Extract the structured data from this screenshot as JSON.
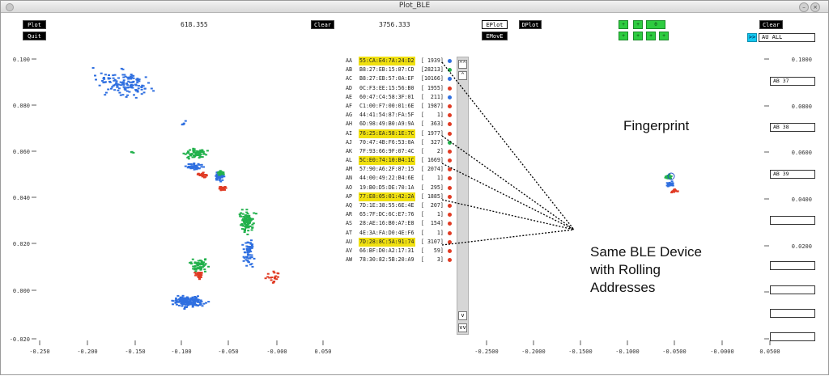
{
  "window": {
    "title": "Plot_BLE"
  },
  "toolbar": {
    "plot_label": "Plot",
    "quit_label": "Quit",
    "readout_x": "618.355",
    "clear_label": "Clear",
    "readout_y": "3756.333",
    "eplot_label": "EPlot",
    "emove_label": "EMovE",
    "dplot_label": "DPlot",
    "clear_right_label": "Clear",
    "nav_center_label": "0",
    "filter_value": "AU ALL",
    "filter_arrow": ">>"
  },
  "left_plot": {
    "y_ticks": [
      "0.100",
      "0.080",
      "0.060",
      "0.040",
      "0.020",
      "0.000",
      "-0.020"
    ],
    "x_ticks": [
      "-0.250",
      "-0.200",
      "-0.150",
      "-0.100",
      "-0.050",
      "-0.000",
      "0.050"
    ]
  },
  "right_plot": {
    "y_ticks": [
      "0.1000",
      "0.0800",
      "0.0600",
      "0.0400",
      "0.0200",
      "0.0000",
      "-0.0200"
    ],
    "x_ticks": [
      "-0.2500",
      "-0.2000",
      "-0.1500",
      "-0.1000",
      "-0.0500",
      "-0.0000",
      "0.0500"
    ]
  },
  "devices": [
    {
      "code": "AA",
      "addr": "55:CA:E4:7A:24:D2",
      "count": "[ 1939]",
      "highlight": true,
      "color": "#2f6fe0"
    },
    {
      "code": "AB",
      "addr": "B8:27:EB:15:87:CD",
      "count": "[28213]",
      "highlight": false,
      "color": "#22b14c"
    },
    {
      "code": "AC",
      "addr": "B8:27:EB:57:0A:EF",
      "count": "[10166]",
      "highlight": false,
      "color": "#2f6fe0"
    },
    {
      "code": "AD",
      "addr": "0C:F3:EE:15:56:B0",
      "count": "[ 1955]",
      "highlight": false,
      "color": "#e03b24"
    },
    {
      "code": "AE",
      "addr": "60:47:C4:58:3F:01",
      "count": "[  211]",
      "highlight": false,
      "color": "#2f6fe0"
    },
    {
      "code": "AF",
      "addr": "C1:00:F7:00:01:6E",
      "count": "[ 1987]",
      "highlight": false,
      "color": "#e03b24"
    },
    {
      "code": "AG",
      "addr": "44:41:54:87:FA:5F",
      "count": "[    1]",
      "highlight": false,
      "color": "#e03b24"
    },
    {
      "code": "AH",
      "addr": "6D:98:49:B0:A9:9A",
      "count": "[  363]",
      "highlight": false,
      "color": "#e03b24"
    },
    {
      "code": "AI",
      "addr": "76:25:EA:58:1E:7C",
      "count": "[ 1977]",
      "highlight": true,
      "color": "#e03b24"
    },
    {
      "code": "AJ",
      "addr": "70:47:4B:F6:53:0A",
      "count": "[  327]",
      "highlight": false,
      "color": "#22b14c"
    },
    {
      "code": "AK",
      "addr": "7F:93:66:9F:07:4C",
      "count": "[    2]",
      "highlight": false,
      "color": "#e03b24"
    },
    {
      "code": "AL",
      "addr": "5C:E0:74:10:B4:1C",
      "count": "[ 1669]",
      "highlight": true,
      "color": "#e03b24"
    },
    {
      "code": "AM",
      "addr": "57:90:A6:2F:87:15",
      "count": "[ 2074]",
      "highlight": false,
      "color": "#e03b24"
    },
    {
      "code": "AN",
      "addr": "44:00:49:22:B4:6E",
      "count": "[    1]",
      "highlight": false,
      "color": "#e03b24"
    },
    {
      "code": "AO",
      "addr": "19:B0:D5:DE:70:1A",
      "count": "[  295]",
      "highlight": false,
      "color": "#e03b24"
    },
    {
      "code": "AP",
      "addr": "77:E8:05:01:42:2A",
      "count": "[ 1885]",
      "highlight": true,
      "color": "#e03b24"
    },
    {
      "code": "AQ",
      "addr": "7D:1E:38:55:6E:4E",
      "count": "[  207]",
      "highlight": false,
      "color": "#e03b24"
    },
    {
      "code": "AR",
      "addr": "65:7F:DC:6C:E7:76",
      "count": "[    1]",
      "highlight": false,
      "color": "#e03b24"
    },
    {
      "code": "AS",
      "addr": "28:AE:16:B0:A7:E8",
      "count": "[  154]",
      "highlight": false,
      "color": "#e03b24"
    },
    {
      "code": "AT",
      "addr": "4E:3A:FA:D0:4E:F6",
      "count": "[    1]",
      "highlight": false,
      "color": "#e03b24"
    },
    {
      "code": "AU",
      "addr": "7D:28:8C:5A:91:74",
      "count": "[ 3107]",
      "highlight": true,
      "color": "#e03b24"
    },
    {
      "code": "AV",
      "addr": "66:BF:D0:A2:17:31",
      "count": "[   59]",
      "highlight": false,
      "color": "#e03b24"
    },
    {
      "code": "AW",
      "addr": "78:30:82:5B:20:A9",
      "count": "[    3]",
      "highlight": false,
      "color": "#e03b24"
    }
  ],
  "scroll": {
    "up_double": "^^",
    "up": "^",
    "down": "v",
    "down_double": "vv"
  },
  "right_boxes": [
    "AB 37",
    "AB 38",
    "AB 39",
    "",
    "",
    "",
    "",
    ""
  ],
  "annotations": {
    "fingerprint": "Fingerprint",
    "same_device": "Same BLE Device",
    "with_rolling": "with Rolling",
    "addresses": "Addresses"
  },
  "colors": {
    "green": "#22b14c",
    "blue": "#2f6fe0",
    "red": "#e03b24",
    "highlight": "#f0e010",
    "cyan": "#12c8f0"
  }
}
